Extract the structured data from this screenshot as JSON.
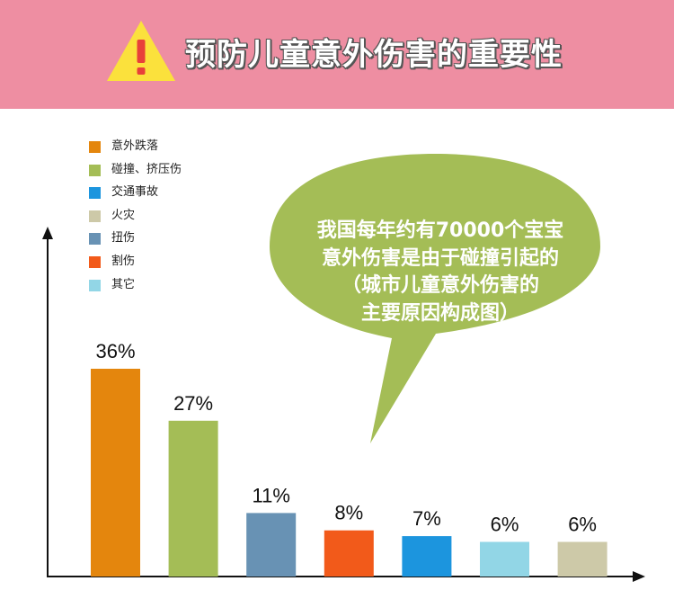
{
  "header": {
    "title": "预防儿童意外伤害的重要性",
    "icon": "warning-icon",
    "background": "#ee8ea2",
    "icon_fill": "#fbe13c",
    "icon_mark_color": "#e8403a"
  },
  "bubble": {
    "text": "我国每年约有70000个宝宝\n意外伤害是由于碰撞引起的\n（城市儿童意外伤害的\n主要原因构成图）",
    "color": "#a4bd56"
  },
  "chart_data": {
    "type": "bar",
    "categories": [
      "意外跌落",
      "碰撞、挤压伤",
      "交通事故",
      "火灾",
      "扭伤",
      "割伤",
      "其它"
    ],
    "legend": [
      {
        "label": "意外跌落",
        "color": "#e4860d"
      },
      {
        "label": "碰撞、挤压伤",
        "color": "#a4bd56"
      },
      {
        "label": "交通事故",
        "color": "#1c95de"
      },
      {
        "label": "火灾",
        "color": "#cdc9a8"
      },
      {
        "label": "扭伤",
        "color": "#6892b4"
      },
      {
        "label": "割伤",
        "color": "#f25a1a"
      },
      {
        "label": "其它",
        "color": "#92d6e6"
      }
    ],
    "bars": [
      {
        "value": 36,
        "label": "36%",
        "color": "#e4860d"
      },
      {
        "value": 27,
        "label": "27%",
        "color": "#a4bd56"
      },
      {
        "value": 11,
        "label": "11%",
        "color": "#6892b4"
      },
      {
        "value": 8,
        "label": "8%",
        "color": "#f25a1a"
      },
      {
        "value": 7,
        "label": "7%",
        "color": "#1c95de"
      },
      {
        "value": 6,
        "label": "6%",
        "color": "#92d6e6"
      },
      {
        "value": 6,
        "label": "6%",
        "color": "#cdc9a8"
      }
    ],
    "ylim": [
      0,
      36
    ],
    "legend_position": "top-left",
    "grid": false
  }
}
